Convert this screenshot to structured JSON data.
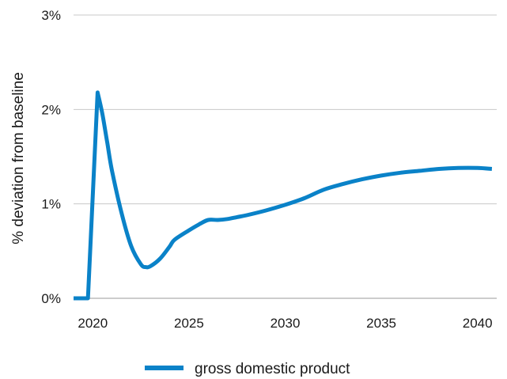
{
  "chart_data": {
    "type": "line",
    "title": "",
    "xlabel": "",
    "ylabel": "% deviation from baseline",
    "xlim": [
      2019,
      2041
    ],
    "ylim": [
      0,
      3
    ],
    "x_ticks": [
      2020,
      2025,
      2030,
      2035,
      2040
    ],
    "x_tick_labels": [
      "2020",
      "2025",
      "2030",
      "2035",
      "2040"
    ],
    "y_ticks": [
      0,
      1,
      2,
      3
    ],
    "y_tick_labels": [
      "0%",
      "1%",
      "2%",
      "3%"
    ],
    "grid": "horizontal",
    "legend_position": "bottom-center",
    "color": "#0a82c8",
    "series": [
      {
        "name": "gross domestic product",
        "x": [
          2019.0,
          2019.75,
          2020.25,
          2020.5,
          2020.75,
          2021.0,
          2021.5,
          2022.0,
          2022.5,
          2022.75,
          2023.0,
          2023.5,
          2024.0,
          2024.25,
          2025.0,
          2025.5,
          2026.0,
          2026.5,
          2027.0,
          2027.5,
          2028.0,
          2029.0,
          2030.0,
          2031.0,
          2032.0,
          2033.0,
          2034.0,
          2035.0,
          2036.0,
          2037.0,
          2038.0,
          2039.0,
          2040.0,
          2040.75
        ],
        "values": [
          0.0,
          0.0,
          2.18,
          1.95,
          1.65,
          1.35,
          0.9,
          0.55,
          0.36,
          0.33,
          0.34,
          0.42,
          0.55,
          0.62,
          0.72,
          0.78,
          0.83,
          0.83,
          0.84,
          0.86,
          0.88,
          0.93,
          0.99,
          1.06,
          1.15,
          1.21,
          1.26,
          1.3,
          1.33,
          1.35,
          1.37,
          1.38,
          1.38,
          1.37
        ]
      }
    ]
  }
}
